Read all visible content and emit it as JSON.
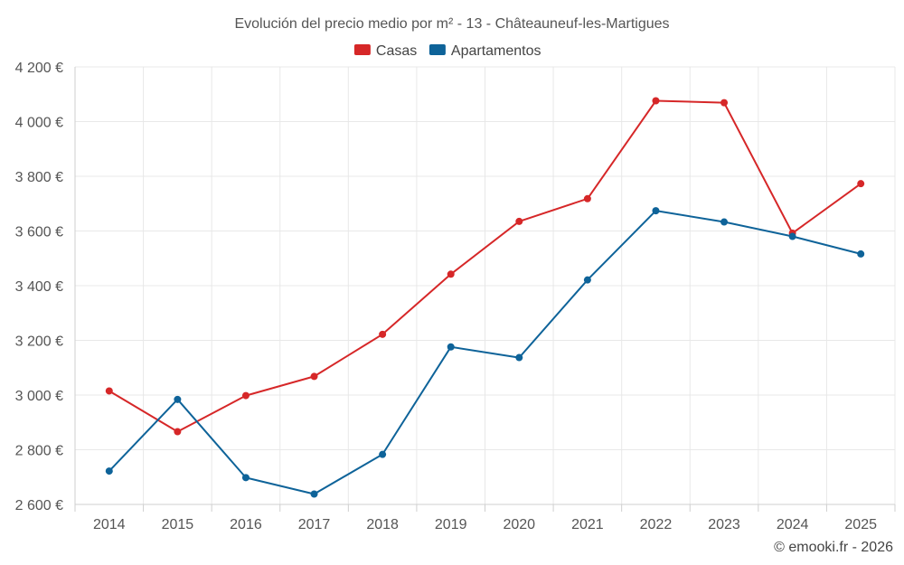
{
  "chart_data": {
    "type": "line",
    "title": "Evolución del precio medio por m² - 13 - Châteauneuf-les-Martigues",
    "categories": [
      "2014",
      "2015",
      "2016",
      "2017",
      "2018",
      "2019",
      "2020",
      "2021",
      "2022",
      "2023",
      "2024",
      "2025"
    ],
    "series": [
      {
        "name": "Casas",
        "color": "#d62728",
        "values": [
          3015,
          2866,
          2998,
          3068,
          3222,
          3442,
          3635,
          3718,
          4076,
          4069,
          3592,
          3773
        ]
      },
      {
        "name": "Apartamentos",
        "color": "#0e6399",
        "values": [
          2722,
          2984,
          2698,
          2638,
          2783,
          3176,
          3137,
          3421,
          3674,
          3633,
          3580,
          3516
        ]
      }
    ],
    "ylim": [
      2600,
      4200
    ],
    "yticks": [
      2600,
      2800,
      3000,
      3200,
      3400,
      3600,
      3800,
      4000,
      4200
    ],
    "ytick_labels": [
      "2 600 €",
      "2 800 €",
      "3 000 €",
      "3 200 €",
      "3 400 €",
      "3 600 €",
      "3 800 €",
      "4 000 €",
      "4 200 €"
    ],
    "xlabel": "",
    "ylabel": "",
    "legend": "top-center",
    "grid": true
  },
  "credit": "© emooki.fr - 2026"
}
